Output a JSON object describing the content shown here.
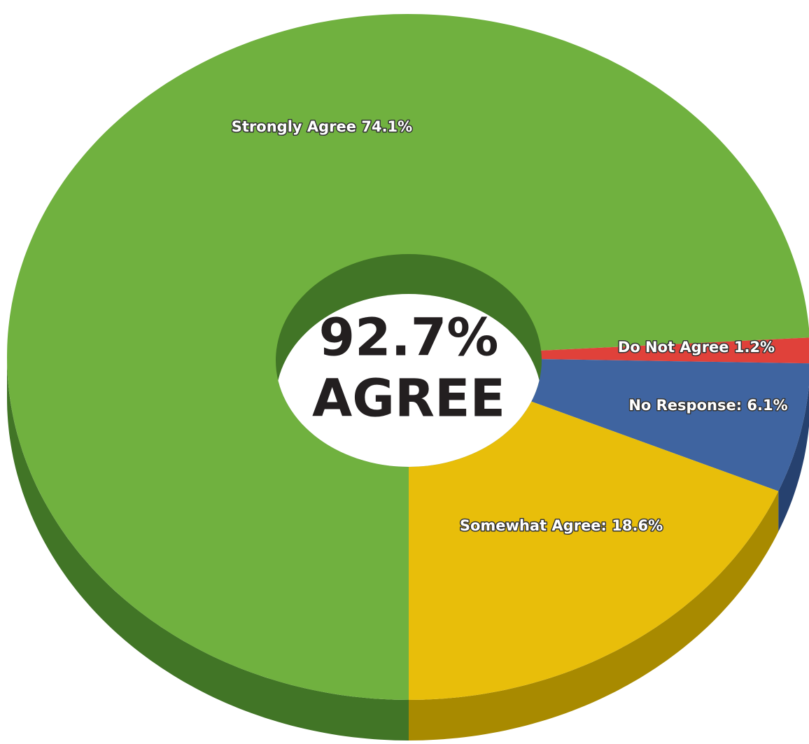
{
  "chart_data": {
    "type": "pie3d",
    "values": [
      74.1,
      1.2,
      6.1,
      18.6
    ],
    "value_labels": [
      "Strongly Agree 74.1%",
      "Do Not Agree 1.2%",
      "No Response: 6.1%",
      "Somewhat Agree: 18.6%"
    ],
    "colors": [
      "#70b13f",
      "#e0413a",
      "#3f64a0",
      "#e8be0a"
    ],
    "side_colors": [
      "#417526",
      "#a8352e",
      "#26416f",
      "#a88a00"
    ],
    "annotations": [
      "92.7%",
      "AGREE"
    ]
  }
}
